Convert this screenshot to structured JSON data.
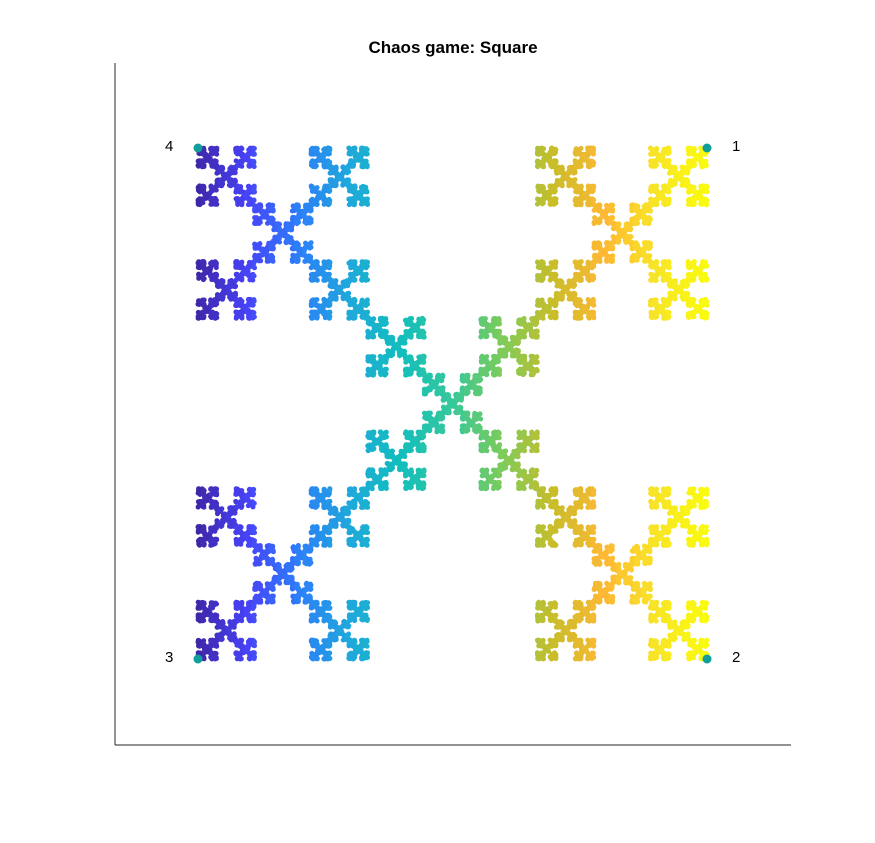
{
  "chart_data": {
    "type": "scatter",
    "title": "Chaos game: Square",
    "xlabel": "",
    "ylabel": "",
    "xlim": [
      -0.32,
      1.08
    ],
    "ylim": [
      -0.32,
      1.16
    ],
    "axes": "left-bottom only, no ticks",
    "grid": false,
    "legend": "none",
    "colormap": [
      "#3e26a8",
      "#4743f8",
      "#2d7ef9",
      "#1fa8db",
      "#12bebd",
      "#35c89a",
      "#7dcb5a",
      "#c9bd2a",
      "#feb833",
      "#f8e427",
      "#f9fb0e"
    ],
    "vertices": [
      {
        "label": "1",
        "x": 1,
        "y": 1
      },
      {
        "label": "2",
        "x": 1,
        "y": 0
      },
      {
        "label": "3",
        "x": 0,
        "y": 0
      },
      {
        "label": "4",
        "x": 0,
        "y": 1
      }
    ],
    "vertex_color": "#0f9e9a",
    "fractal_rule": "Each point moves 2/3 of the way toward a randomly chosen vertex, or toward the square's center; color follows the x value.",
    "ratio": 0.6667,
    "center": [
      0.5,
      0.5
    ],
    "points": 30000
  }
}
